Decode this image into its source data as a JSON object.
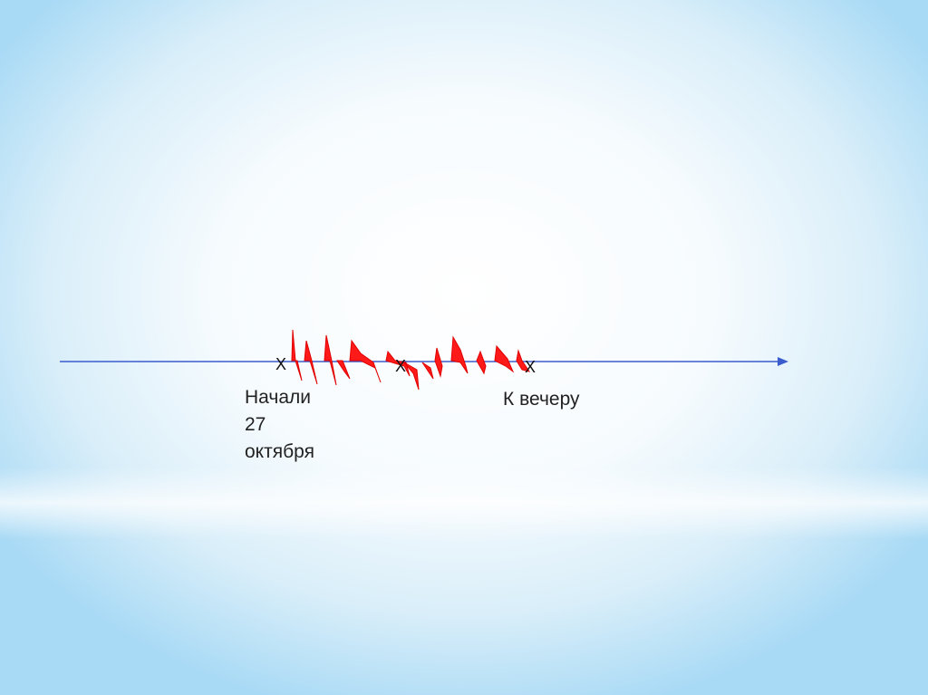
{
  "slide": {
    "markers": [
      "X",
      "X",
      "X"
    ],
    "start_label": [
      "Начали",
      "27",
      "октября"
    ],
    "end_label": "К вечеру",
    "colors": {
      "axis": "#3a5ccc",
      "scribble": "#ff1a1a"
    }
  }
}
